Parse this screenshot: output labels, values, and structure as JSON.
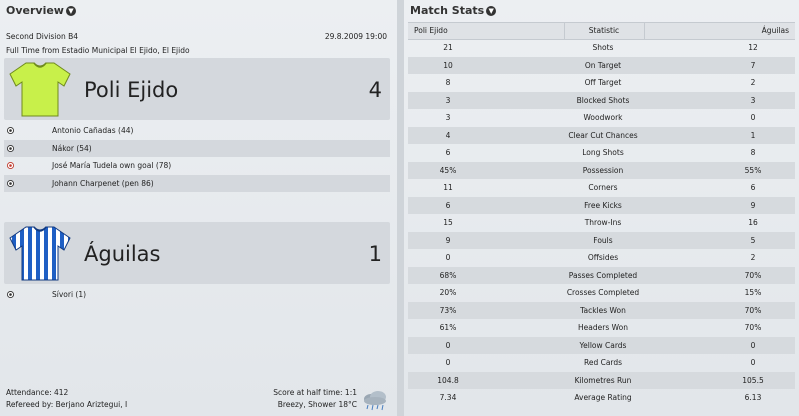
{
  "overview": {
    "title": "Overview",
    "competition": "Second Division B4",
    "datetime": "29.8.2009 19:00",
    "venue_line": "Full Time from Estadio Municipal El Ejido, El Ejido",
    "home": {
      "name": "Poli Ejido",
      "score": "4",
      "shirt_color": "#c8f04a",
      "goals": [
        {
          "text": "Antonio Cañadas (44)",
          "own_goal": false
        },
        {
          "text": "Nákor (54)",
          "own_goal": false
        },
        {
          "text": "José María Tudela own goal (78)",
          "own_goal": true
        },
        {
          "text": "Johann Charpenet (pen 86)",
          "own_goal": false
        }
      ]
    },
    "away": {
      "name": "Águilas",
      "score": "1",
      "goals": [
        {
          "text": "Sívori (1)",
          "own_goal": false
        }
      ]
    },
    "attendance": "Attendance: 412",
    "referee": "Refereed by: Berjano Ariztegui, I",
    "halftime": "Score at half time: 1:1",
    "weather": "Breezy, Shower 18°C",
    "weather_icon": "cloud-rain-icon"
  },
  "stats": {
    "title": "Match Stats",
    "headers": [
      "Poli Ejido",
      "Statistic",
      "Águilas"
    ],
    "rows": [
      {
        "home": "21",
        "label": "Shots",
        "away": "12"
      },
      {
        "home": "10",
        "label": "On Target",
        "away": "7"
      },
      {
        "home": "8",
        "label": "Off Target",
        "away": "2"
      },
      {
        "home": "3",
        "label": "Blocked Shots",
        "away": "3"
      },
      {
        "home": "3",
        "label": "Woodwork",
        "away": "0"
      },
      {
        "home": "4",
        "label": "Clear Cut Chances",
        "away": "1"
      },
      {
        "home": "6",
        "label": "Long Shots",
        "away": "8"
      },
      {
        "home": "45%",
        "label": "Possession",
        "away": "55%"
      },
      {
        "home": "11",
        "label": "Corners",
        "away": "6"
      },
      {
        "home": "6",
        "label": "Free Kicks",
        "away": "9"
      },
      {
        "home": "15",
        "label": "Throw-Ins",
        "away": "16"
      },
      {
        "home": "9",
        "label": "Fouls",
        "away": "5"
      },
      {
        "home": "0",
        "label": "Offsides",
        "away": "2"
      },
      {
        "home": "68%",
        "label": "Passes Completed",
        "away": "70%"
      },
      {
        "home": "20%",
        "label": "Crosses Completed",
        "away": "15%"
      },
      {
        "home": "73%",
        "label": "Tackles Won",
        "away": "70%"
      },
      {
        "home": "61%",
        "label": "Headers Won",
        "away": "70%"
      },
      {
        "home": "0",
        "label": "Yellow Cards",
        "away": "0"
      },
      {
        "home": "0",
        "label": "Red Cards",
        "away": "0"
      },
      {
        "home": "104.8",
        "label": "Kilometres Run",
        "away": "105.5"
      },
      {
        "home": "7.34",
        "label": "Average Rating",
        "away": "6.13"
      }
    ]
  }
}
